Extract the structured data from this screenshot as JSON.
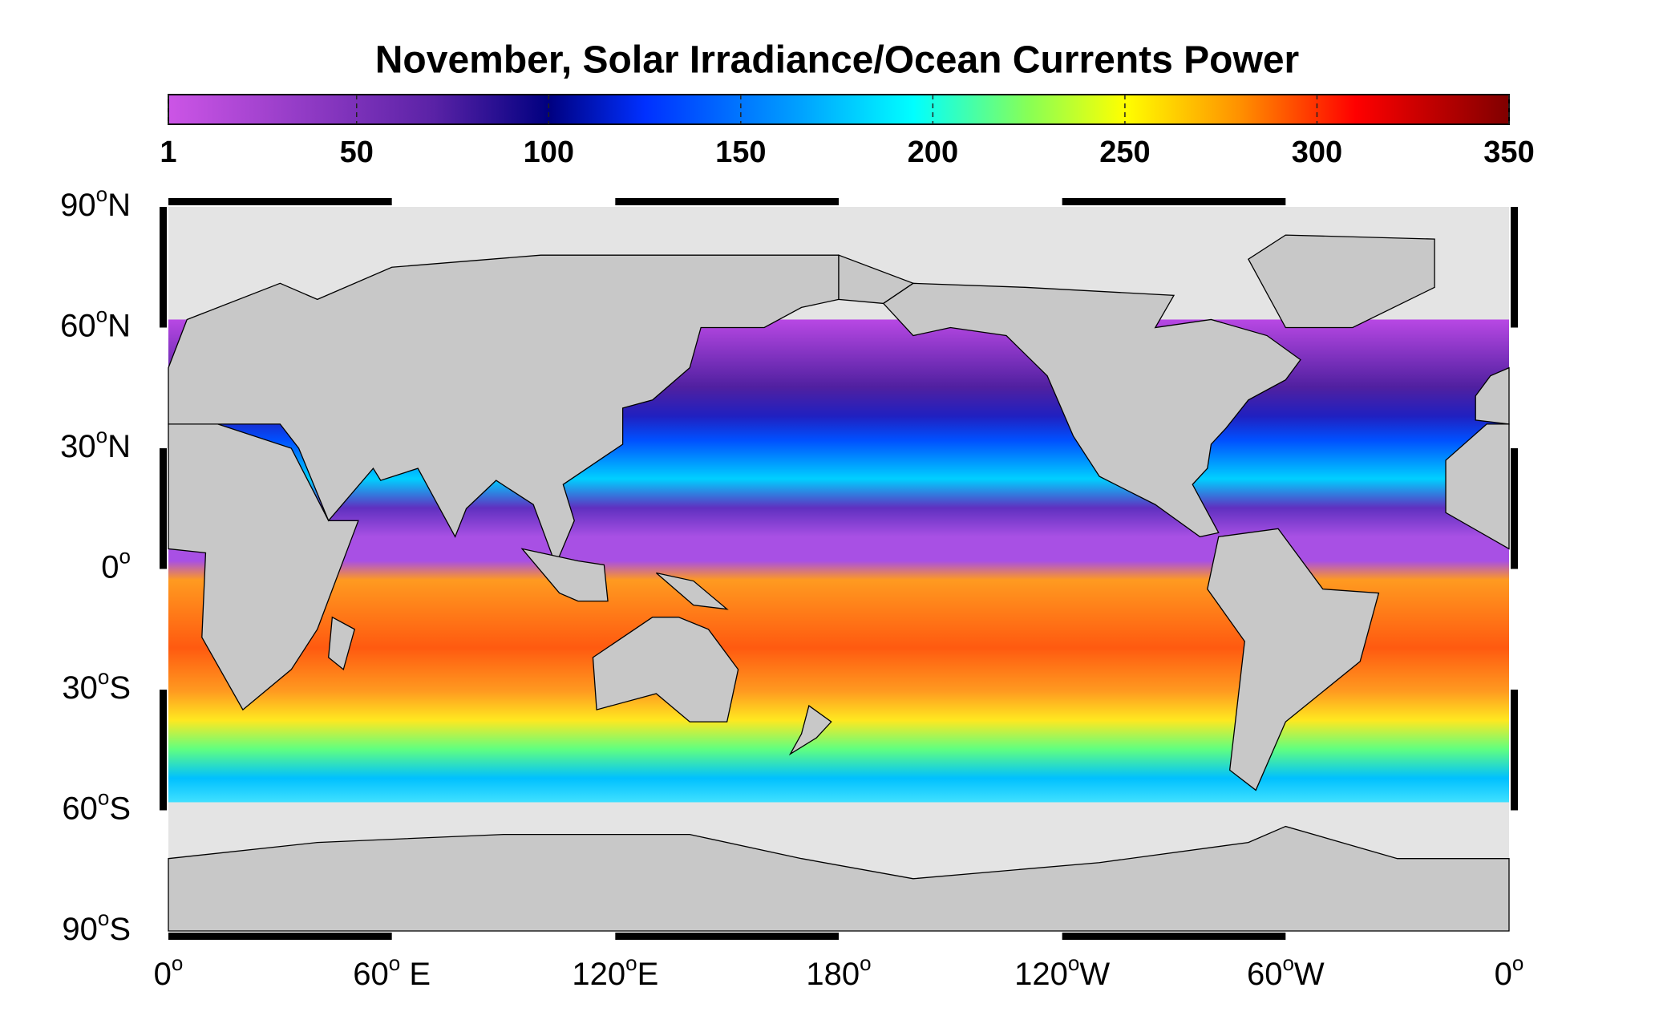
{
  "title": "November, Solar Irradiance/Ocean Currents Power",
  "colorbar": {
    "lim": [
      1,
      350
    ],
    "ticks": [
      1,
      50,
      100,
      150,
      200,
      250,
      300,
      350
    ],
    "stops": [
      1,
      70,
      100,
      125,
      165,
      195,
      225,
      250,
      280,
      310,
      350
    ],
    "colors": [
      "#cc55e6",
      "#5a22a6",
      "#000080",
      "#0030ff",
      "#00a0ff",
      "#00ffff",
      "#88ff55",
      "#ffff00",
      "#ff9000",
      "#ff0000",
      "#800000"
    ]
  },
  "degree_mark": "o",
  "lat_labels": [
    {
      "num": "90",
      "suffix": "N"
    },
    {
      "num": "60",
      "suffix": "N"
    },
    {
      "num": "30",
      "suffix": "N"
    },
    {
      "num": "0",
      "suffix": ""
    },
    {
      "num": "30",
      "suffix": "S"
    },
    {
      "num": "60",
      "suffix": "S"
    },
    {
      "num": "90",
      "suffix": "S"
    }
  ],
  "lon_labels": [
    {
      "num": "0",
      "suffix": ""
    },
    {
      "num": "60",
      "suffix": " E"
    },
    {
      "num": "120",
      "suffix": "E"
    },
    {
      "num": "180",
      "suffix": ""
    },
    {
      "num": "120",
      "suffix": "W"
    },
    {
      "num": "60",
      "suffix": "W"
    },
    {
      "num": "0",
      "suffix": ""
    }
  ]
}
